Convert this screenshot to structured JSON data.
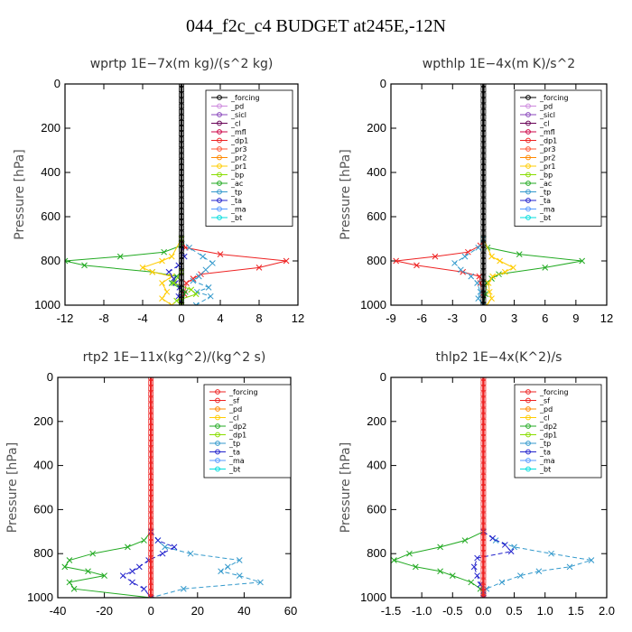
{
  "figure": {
    "title": "044_f2c_c4  BUDGET at245E,-12N"
  },
  "colors": {
    "forcing": "#000000",
    "pd": "#cc88dd",
    "sicl": "#8844bb",
    "cl": "#660055",
    "mfl": "#cc0044",
    "dp1": "#ee2222",
    "pr3": "#ff5533",
    "pr2": "#ff8800",
    "pr1": "#ffcc00",
    "bp": "#88dd00",
    "ac": "#22aa22",
    "tp": "#3399cc",
    "ta": "#2222cc",
    "ma": "#5599ff",
    "bt": "#00dddd",
    "sf": "#ee2222",
    "dp2": "#22aa22",
    "rtp2_pd": "#ff8800",
    "rtp2_cl": "#ffcc00",
    "rtp2_dp1": "#88dd00"
  },
  "chart_data": [
    {
      "type": "line",
      "title": "wprtp  1E−7x(m kg)/(s^2 kg)",
      "ylabel": "Pressure [hPa]",
      "xlim": [
        -12,
        12
      ],
      "ylim": [
        1000,
        0
      ],
      "xticks": [
        "-12",
        "-8",
        "-4",
        "0",
        "4",
        "8",
        "12"
      ],
      "yticks": [
        "0",
        "200",
        "400",
        "600",
        "800",
        "1000"
      ],
      "legend_position": "top-right",
      "legend": [
        "_forcing",
        "_pd",
        "_sicl",
        "_cl",
        "_mfl",
        "_dp1",
        "_pr3",
        "_pr2",
        "_pr1",
        "_bp",
        "_ac",
        "_tp",
        "_ta",
        "_ma",
        "_bt"
      ],
      "series": [
        {
          "name": "_dp1",
          "color": "#ee2222",
          "p": [
            700,
            740,
            770,
            800,
            830,
            860,
            880,
            900,
            950,
            1000
          ],
          "x": [
            0,
            0.4,
            4,
            10.8,
            8,
            2,
            1.2,
            0.5,
            0.3,
            0
          ]
        },
        {
          "name": "_ac",
          "color": "#22aa22",
          "p": [
            700,
            730,
            760,
            780,
            800,
            820,
            850,
            870,
            900,
            940,
            1000
          ],
          "x": [
            0,
            0,
            -1.8,
            -6.3,
            -12,
            -10,
            -3,
            -0.5,
            -1,
            0.4,
            0
          ]
        },
        {
          "name": "_pr1",
          "color": "#ffcc00",
          "p": [
            700,
            780,
            800,
            830,
            850,
            870,
            900,
            940,
            970,
            1000
          ],
          "x": [
            0,
            -1,
            -2,
            -4,
            -3,
            -1,
            -2,
            -1.5,
            -2,
            -1
          ]
        },
        {
          "name": "_tp",
          "color": "#3399cc",
          "p": [
            700,
            740,
            780,
            810,
            840,
            870,
            890,
            920,
            940,
            960,
            1000
          ],
          "x": [
            0,
            0.8,
            2.2,
            3.2,
            2.5,
            1.8,
            1.2,
            2.8,
            1.6,
            3.0,
            1.5
          ]
        },
        {
          "name": "_ta",
          "color": "#2222cc",
          "p": [
            700,
            780,
            820,
            850,
            880,
            900,
            920,
            960,
            1000
          ],
          "x": [
            0,
            0.3,
            -0.3,
            -1.3,
            -0.8,
            -0.6,
            -0.2,
            -0.3,
            0
          ]
        },
        {
          "name": "_bp",
          "color": "#88dd00",
          "p": [
            700,
            850,
            900,
            930,
            950,
            980,
            1000
          ],
          "x": [
            0,
            0,
            -0.8,
            1,
            1.5,
            -0.5,
            0
          ]
        },
        {
          "name": "_forcing",
          "color": "#000000",
          "p": [
            0,
            1000
          ],
          "x": [
            0,
            0
          ]
        }
      ]
    },
    {
      "type": "line",
      "title": "wpthlp  1E−4x(m K)/s^2",
      "ylabel": "Pressure [hPa]",
      "xlim": [
        -9,
        12
      ],
      "ylim": [
        1000,
        0
      ],
      "xticks": [
        "-9",
        "-6",
        "-3",
        "0",
        "3",
        "6",
        "9",
        "12"
      ],
      "yticks": [
        "0",
        "200",
        "400",
        "600",
        "800",
        "1000"
      ],
      "legend_position": "top-right",
      "legend": [
        "_forcing",
        "_pd",
        "_sicl",
        "_cl",
        "_mfl",
        "_dp1",
        "_pr3",
        "_pr2",
        "_pr1",
        "_bp",
        "_ac",
        "_tp",
        "_ta",
        "_ma",
        "_bt"
      ],
      "series": [
        {
          "name": "_ac",
          "color": "#22aa22",
          "p": [
            700,
            740,
            770,
            800,
            830,
            860,
            880,
            900,
            950,
            1000
          ],
          "x": [
            0,
            0.4,
            3.5,
            9.6,
            6,
            1.5,
            0.8,
            0.3,
            0.2,
            0
          ]
        },
        {
          "name": "_dp1",
          "color": "#ee2222",
          "p": [
            700,
            730,
            760,
            780,
            800,
            820,
            850,
            870,
            900,
            950,
            1000
          ],
          "x": [
            0,
            -0.3,
            -1.5,
            -4.7,
            -8.5,
            -6.5,
            -2,
            -0.4,
            -0.3,
            -0.1,
            0
          ]
        },
        {
          "name": "_pr1",
          "color": "#ffcc00",
          "p": [
            700,
            780,
            800,
            830,
            850,
            870,
            900,
            940,
            970,
            1000
          ],
          "x": [
            0,
            0.8,
            1.6,
            2.9,
            2.1,
            0.9,
            0.5,
            0.6,
            0.8,
            0.3
          ]
        },
        {
          "name": "_tp",
          "color": "#3399cc",
          "p": [
            700,
            740,
            780,
            810,
            840,
            870,
            900,
            940,
            970,
            1000
          ],
          "x": [
            0,
            -0.5,
            -1.8,
            -2.8,
            -2.2,
            -1.2,
            -0.6,
            -0.3,
            -0.5,
            0
          ]
        },
        {
          "name": "_forcing",
          "color": "#000000",
          "p": [
            0,
            1000
          ],
          "x": [
            0,
            0
          ]
        }
      ]
    },
    {
      "type": "line",
      "title": "rtp2  1E−11x(kg^2)/(kg^2 s)",
      "ylabel": "Pressure [hPa]",
      "xlim": [
        -40,
        60
      ],
      "ylim": [
        1000,
        0
      ],
      "xticks": [
        "-40",
        "-20",
        "0",
        "20",
        "40",
        "60"
      ],
      "yticks": [
        "0",
        "200",
        "400",
        "600",
        "800",
        "1000"
      ],
      "legend_position": "top-right",
      "legend": [
        "_forcing",
        "_sf",
        "_pd",
        "_cl",
        "_dp2",
        "_dp1",
        "_tp",
        "_ta",
        "_ma",
        "_bt"
      ],
      "series": [
        {
          "name": "_dp2",
          "color": "#22aa22",
          "p": [
            700,
            740,
            770,
            800,
            830,
            860,
            880,
            900,
            930,
            960,
            1000
          ],
          "x": [
            0,
            -3,
            -10,
            -25,
            -35,
            -37,
            -27,
            -20,
            -35,
            -33,
            0
          ]
        },
        {
          "name": "_tp",
          "color": "#3399cc",
          "p": [
            700,
            740,
            770,
            800,
            830,
            860,
            880,
            900,
            930,
            960,
            1000
          ],
          "x": [
            0,
            3,
            6,
            17,
            38,
            33,
            30,
            38,
            47,
            14,
            0
          ]
        },
        {
          "name": "_ta",
          "color": "#2222cc",
          "p": [
            700,
            740,
            770,
            800,
            830,
            860,
            880,
            900,
            930,
            960,
            1000
          ],
          "x": [
            0,
            3,
            10,
            5,
            -1,
            -5,
            -8,
            -12,
            -8,
            -3,
            0
          ]
        },
        {
          "name": "_forcing",
          "color": "#ee2222",
          "p": [
            0,
            1000
          ],
          "x": [
            0,
            0
          ]
        }
      ]
    },
    {
      "type": "line",
      "title": "thlp2  1E−4x(K^2)/s",
      "ylabel": "Pressure [hPa]",
      "xlim": [
        -1.5,
        2.0
      ],
      "ylim": [
        1000,
        0
      ],
      "xticks": [
        "-1.5",
        "-1.0",
        "-0.5",
        "0.0",
        "0.5",
        "1.0",
        "1.5",
        "2.0"
      ],
      "yticks": [
        "0",
        "200",
        "400",
        "600",
        "800",
        "1000"
      ],
      "legend_position": "top-right",
      "legend": [
        "_forcing",
        "_sf",
        "_pd",
        "_cl",
        "_dp2",
        "_dp1",
        "_tp",
        "_ta",
        "_ma",
        "_bt"
      ],
      "series": [
        {
          "name": "_dp2",
          "color": "#22aa22",
          "p": [
            700,
            740,
            770,
            800,
            830,
            860,
            880,
            900,
            930,
            960,
            1000
          ],
          "x": [
            0,
            -0.3,
            -0.7,
            -1.2,
            -1.45,
            -1.1,
            -0.7,
            -0.5,
            -0.2,
            -0.05,
            0
          ]
        },
        {
          "name": "_tp",
          "color": "#3399cc",
          "p": [
            700,
            740,
            770,
            800,
            830,
            860,
            880,
            900,
            930,
            960,
            1000
          ],
          "x": [
            0,
            0.2,
            0.5,
            1.1,
            1.75,
            1.4,
            0.9,
            0.6,
            0.3,
            0.05,
            0
          ]
        },
        {
          "name": "_ta",
          "color": "#2222cc",
          "p": [
            700,
            730,
            760,
            790,
            820,
            860,
            900,
            940,
            970,
            1000
          ],
          "x": [
            0,
            0.15,
            0.35,
            0.45,
            -0.1,
            -0.15,
            -0.1,
            -0.05,
            0,
            0
          ]
        },
        {
          "name": "_forcing",
          "color": "#ee2222",
          "p": [
            0,
            1000
          ],
          "x": [
            0,
            0
          ]
        }
      ]
    }
  ]
}
